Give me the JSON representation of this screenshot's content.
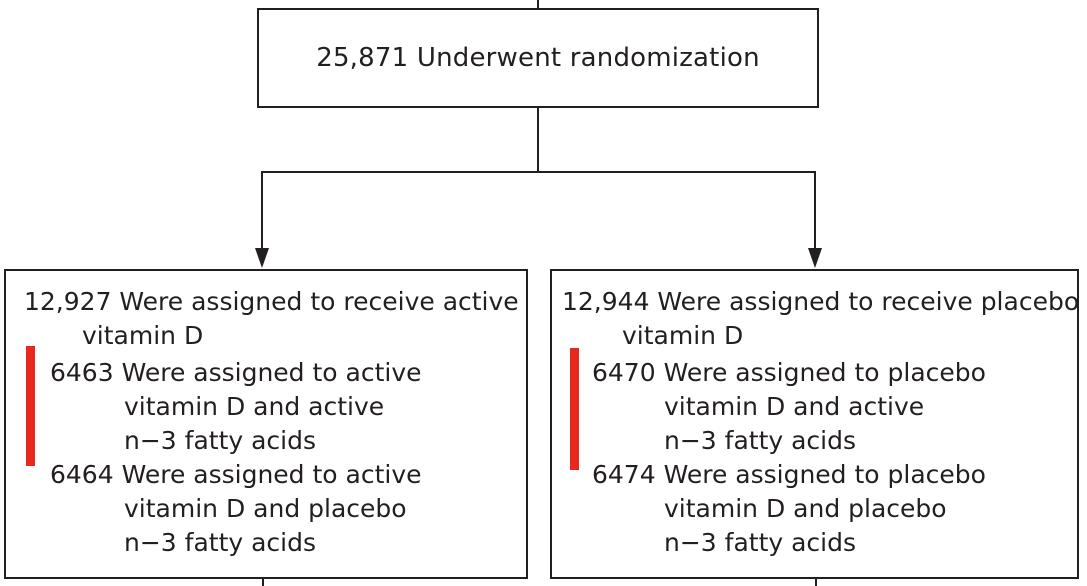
{
  "root": {
    "label": "25,871 Underwent randomization"
  },
  "arms": [
    {
      "line1": "12,927 Were assigned to receive active",
      "line2": "vitamin D",
      "subgroups": [
        {
          "count": "6463",
          "line1": "Were assigned to active",
          "line2": "vitamin D and active",
          "line3": "n−3 fatty acids"
        },
        {
          "count": "6464",
          "line1": "Were assigned to active",
          "line2": "vitamin D and placebo",
          "line3": "n−3 fatty acids"
        }
      ]
    },
    {
      "line1": "12,944 Were assigned to receive placebo",
      "line2": "vitamin D",
      "subgroups": [
        {
          "count": "6470",
          "line1": "Were assigned to placebo",
          "line2": "vitamin D and active",
          "line3": "n−3 fatty acids"
        },
        {
          "count": "6474",
          "line1": "Were assigned to placebo",
          "line2": "vitamin D and placebo",
          "line3": "n−3 fatty acids"
        }
      ]
    }
  ],
  "colors": {
    "line": "#231f20",
    "highlight": "#e8281e"
  }
}
